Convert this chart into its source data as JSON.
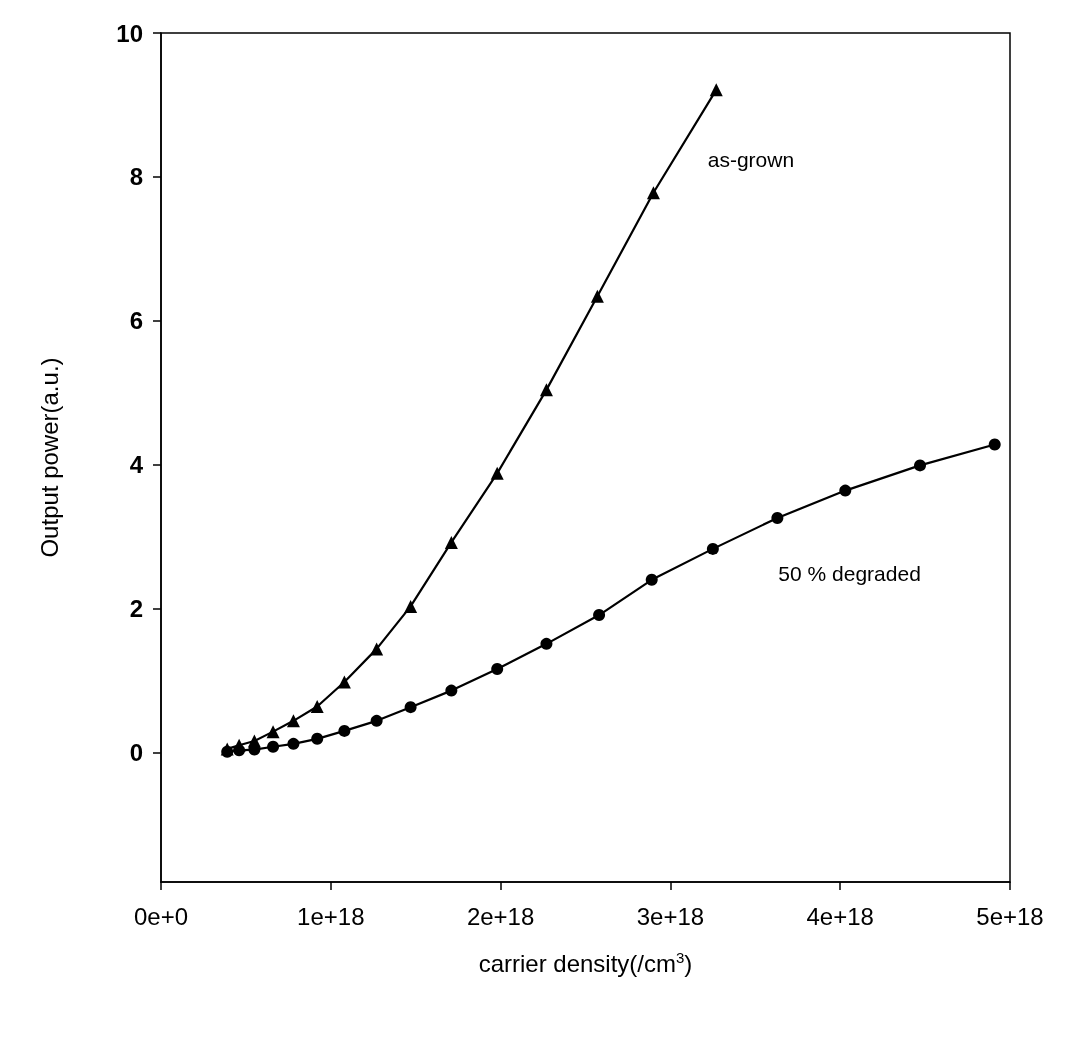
{
  "chart_data": {
    "type": "line",
    "xlabel": "carrier density(/cm$^{3}$)",
    "ylabel": "Output power(a.u.)",
    "xlim": [
      0,
      5e+18
    ],
    "ylim": [
      -1.8,
      10
    ],
    "xticks": [
      {
        "value": 0,
        "label": "0e+0"
      },
      {
        "value": 1e+18,
        "label": "1e+18"
      },
      {
        "value": 2e+18,
        "label": "2e+18"
      },
      {
        "value": 3e+18,
        "label": "3e+18"
      },
      {
        "value": 4e+18,
        "label": "4e+18"
      },
      {
        "value": 5e+18,
        "label": "5e+18"
      }
    ],
    "yticks": [
      0,
      2,
      4,
      6,
      8,
      10
    ],
    "grid": false,
    "line_style": "solid",
    "series": [
      {
        "name": "as-grown",
        "color": "#000000",
        "marker": "triangle",
        "x": [
          3.9e+17,
          4.6e+17,
          5.5e+17,
          6.6e+17,
          7.8e+17,
          9.2e+17,
          1.08e+18,
          1.27e+18,
          1.47e+18,
          1.71e+18,
          1.98e+18,
          2.27e+18,
          2.57e+18,
          2.9e+18,
          3.27e+18
        ],
        "values": [
          0.05,
          0.1,
          0.16,
          0.29,
          0.44,
          0.64,
          0.98,
          1.44,
          2.03,
          2.92,
          3.88,
          5.04,
          6.34,
          7.78,
          9.21
        ]
      },
      {
        "name": "50 % degraded",
        "color": "#000000",
        "marker": "circle",
        "x": [
          3.9e+17,
          4.6e+17,
          5.5e+17,
          6.6e+17,
          7.8e+17,
          9.2e+17,
          1.08e+18,
          1.27e+18,
          1.47e+18,
          1.71e+18,
          1.98e+18,
          2.27e+18,
          2.58e+18,
          2.89e+18,
          3.25e+18,
          3.63e+18,
          4.03e+18,
          4.47e+18,
          4.91e+18
        ],
        "values": [
          0.01,
          0.03,
          0.04,
          0.08,
          0.12,
          0.19,
          0.3,
          0.44,
          0.63,
          0.86,
          1.16,
          1.51,
          1.91,
          2.4,
          2.83,
          3.26,
          3.64,
          3.99,
          4.28
        ]
      }
    ]
  }
}
